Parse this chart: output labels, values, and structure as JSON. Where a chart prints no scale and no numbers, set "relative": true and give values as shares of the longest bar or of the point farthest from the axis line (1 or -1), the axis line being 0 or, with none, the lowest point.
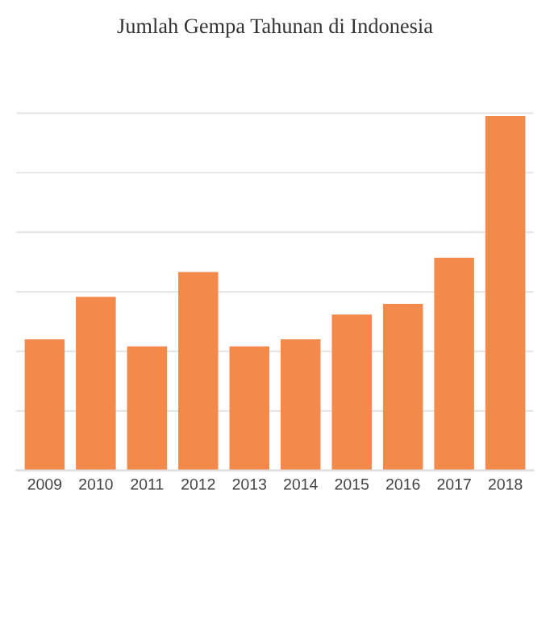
{
  "chart_data": {
    "type": "bar",
    "title": "Jumlah Gempa Tahunan di Indonesia",
    "relative": true,
    "grid": "y",
    "color": "#f4894c",
    "categories": [
      "2009",
      "2010",
      "2011",
      "2012",
      "2013",
      "2014",
      "2015",
      "2016",
      "2017",
      "2018"
    ],
    "values": [
      0.37,
      0.49,
      0.35,
      0.56,
      0.35,
      0.37,
      0.44,
      0.47,
      0.6,
      1
    ]
  }
}
